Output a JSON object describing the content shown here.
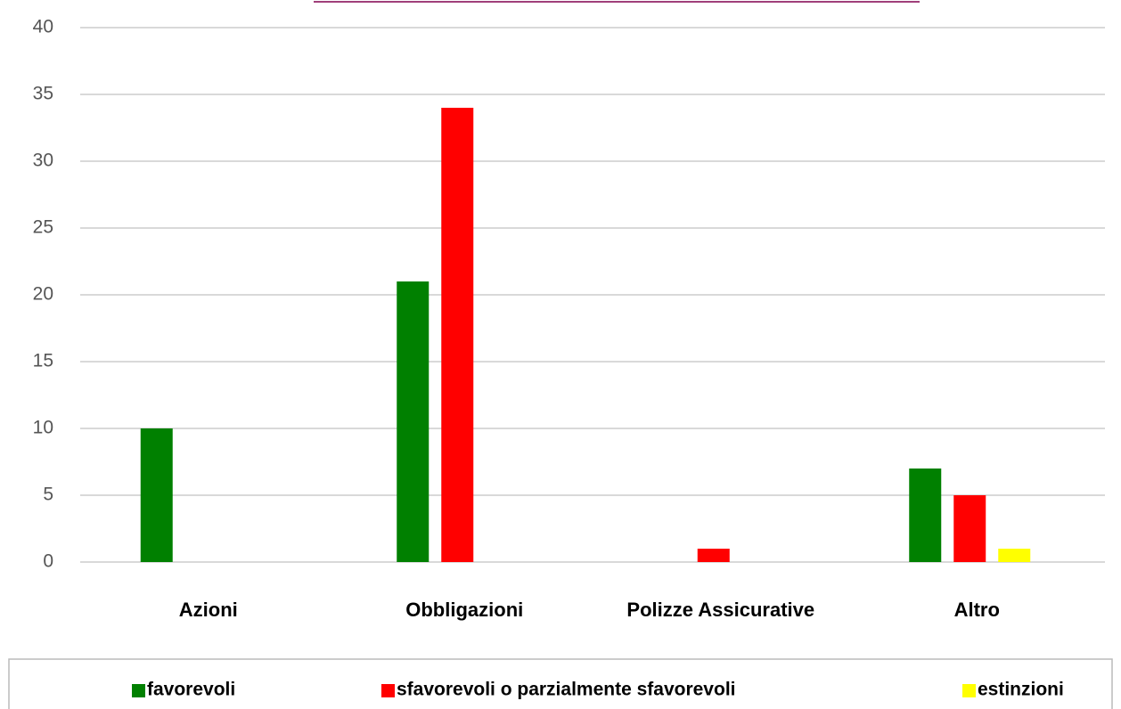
{
  "chart_data": {
    "type": "bar",
    "categories": [
      "Azioni",
      "Obbligazioni",
      "Polizze Assicurative",
      "Altro"
    ],
    "series": [
      {
        "name": "favorevoli",
        "color": "#008000",
        "values": [
          10,
          21,
          0,
          7
        ]
      },
      {
        "name": "sfavorevoli o parzialmente sfavorevoli",
        "color": "#ff0000",
        "values": [
          0,
          34,
          1,
          5
        ]
      },
      {
        "name": "estinzioni",
        "color": "#ffff00",
        "values": [
          0,
          0,
          0,
          1
        ]
      }
    ],
    "ylim": [
      0,
      40
    ],
    "yticks": [
      0,
      5,
      10,
      15,
      20,
      25,
      30,
      35,
      40
    ],
    "grid": true,
    "legend": "bottom"
  }
}
